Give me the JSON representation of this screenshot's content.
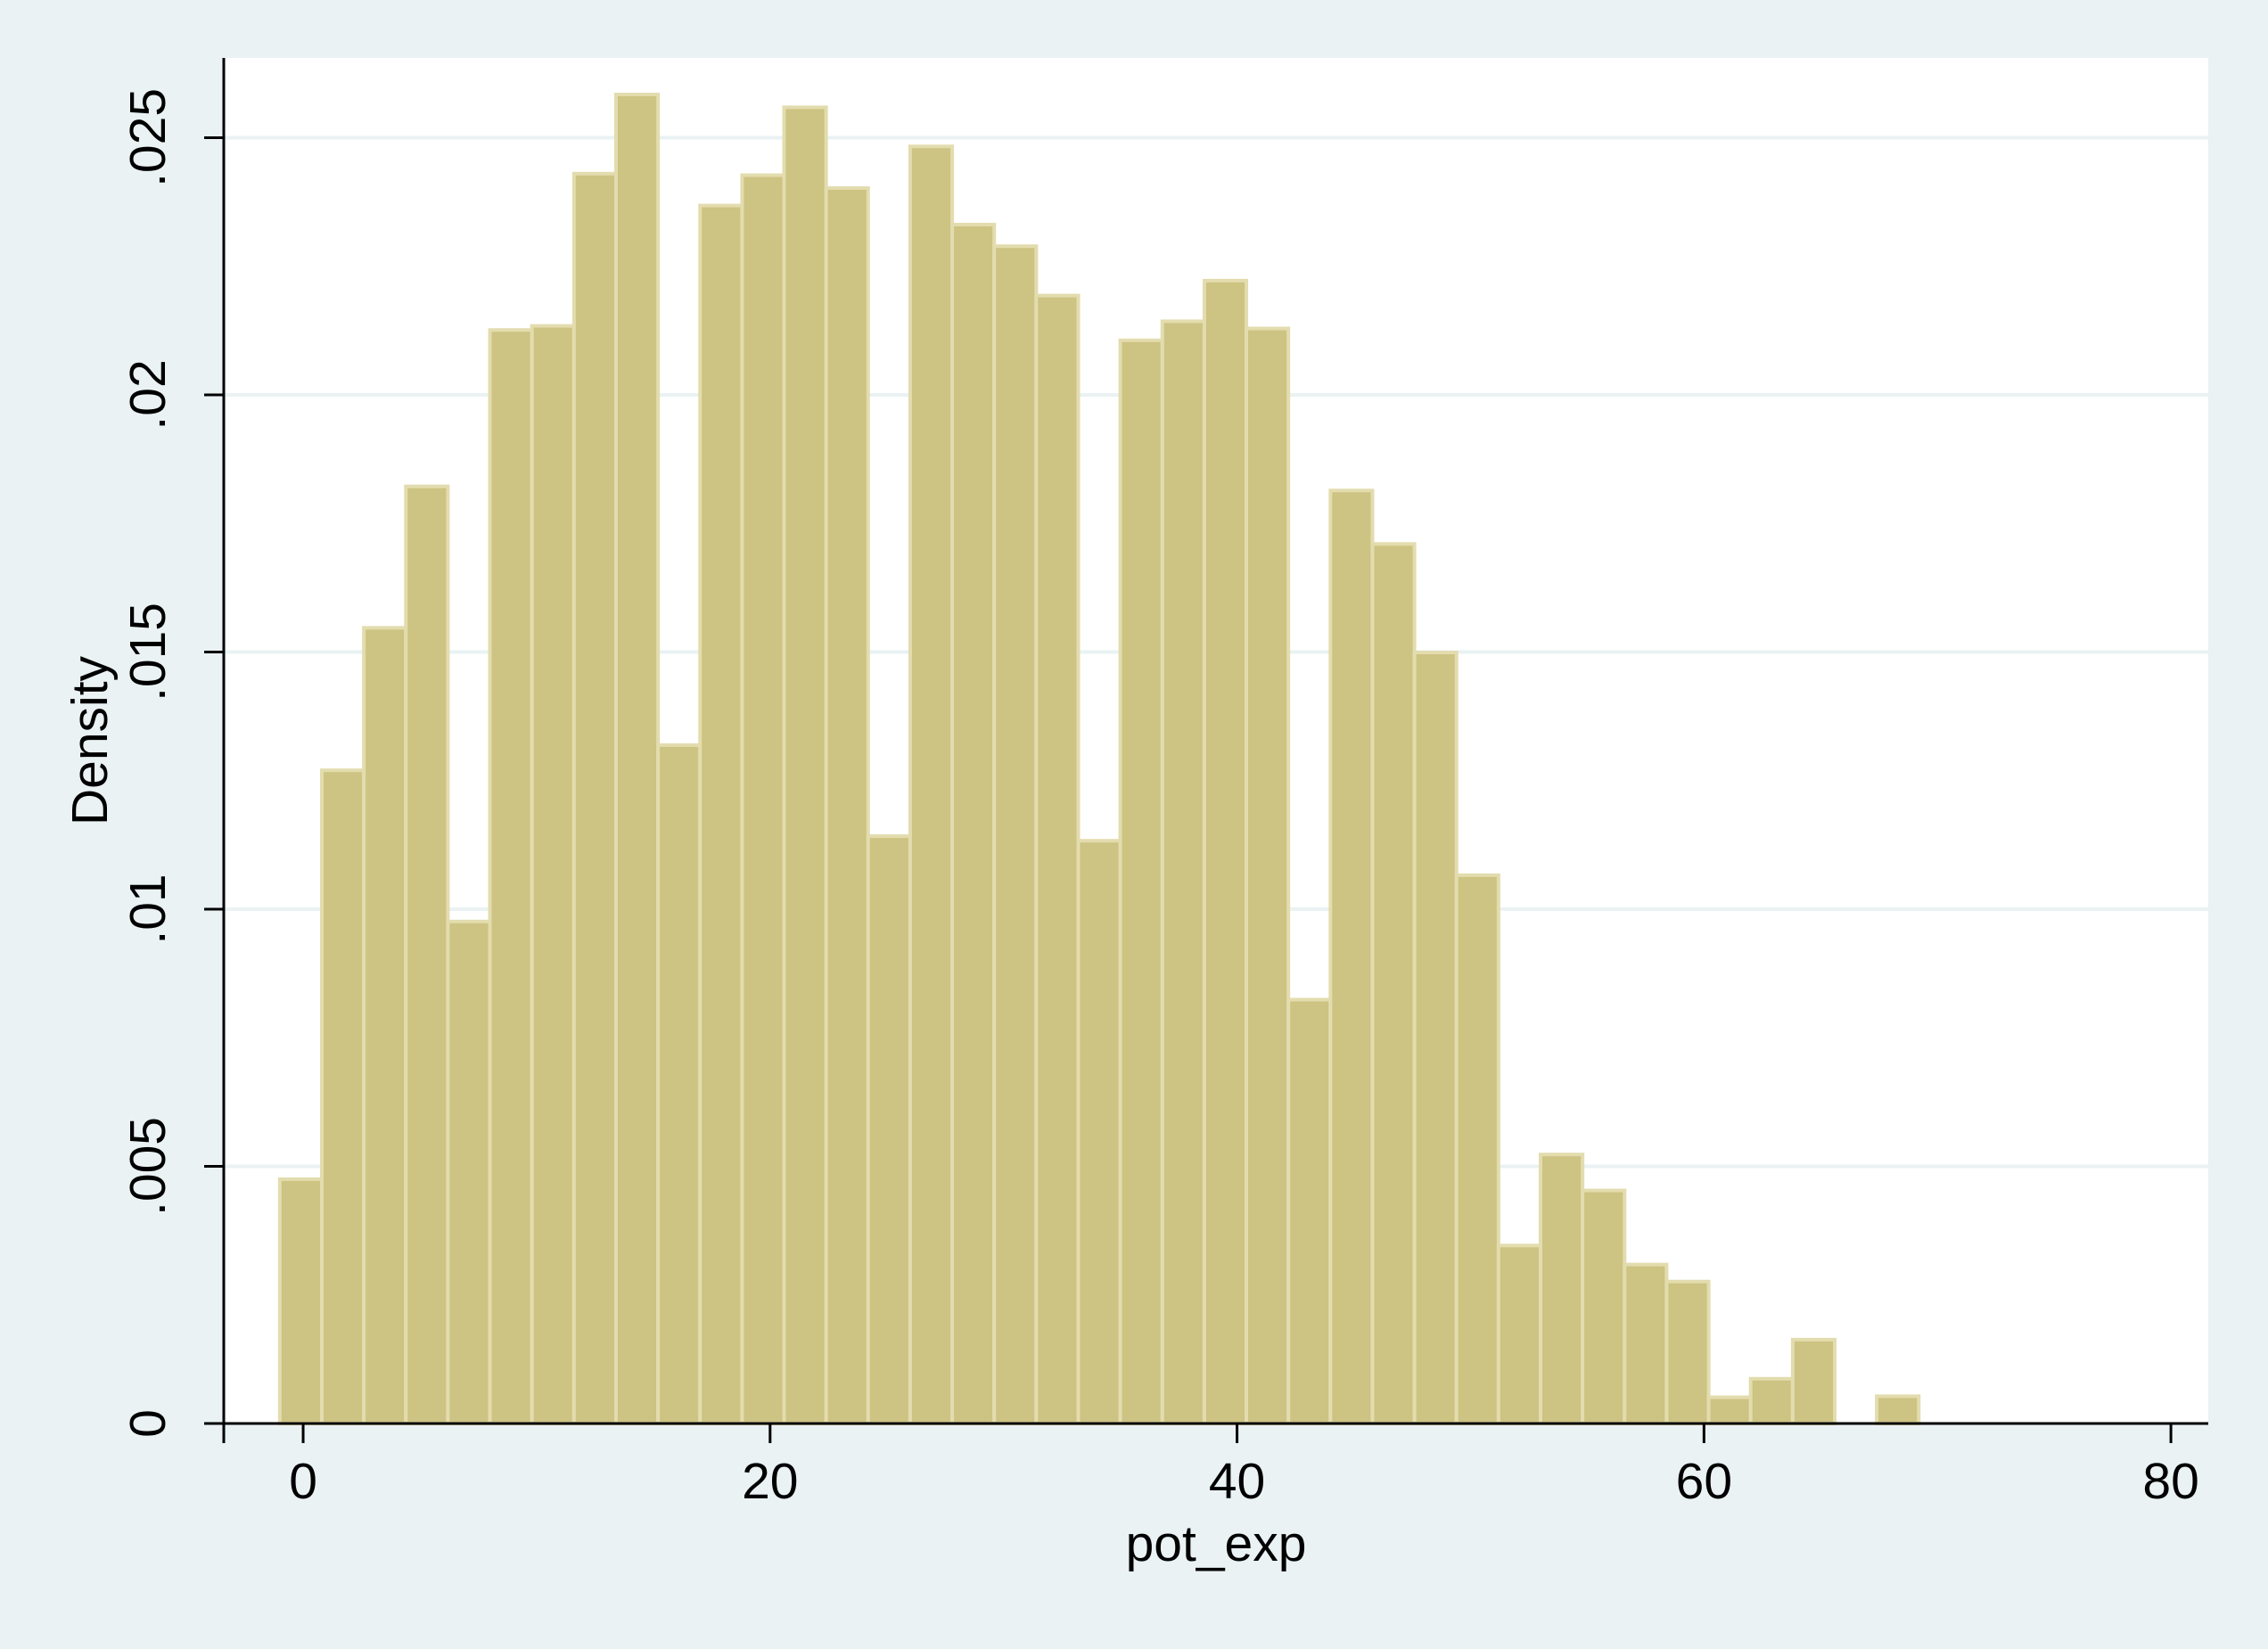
{
  "chart_data": {
    "type": "histogram",
    "x_label": "pot_exp",
    "y_label": "Density",
    "bins": [
      -1,
      0.8,
      2.6,
      4.4,
      6.2,
      8,
      9.8,
      11.6,
      13.4,
      15.2,
      17,
      18.8,
      20.6,
      22.4,
      24.2,
      26,
      27.8,
      29.6,
      31.4,
      33.2,
      35,
      36.8,
      38.6,
      40.4,
      42.2,
      44,
      45.8,
      47.6,
      49.4,
      51.2,
      53,
      54.8,
      56.6,
      58.4,
      60.2,
      62,
      63.8,
      65.6,
      67.4,
      69.2
    ],
    "values": [
      0.00475,
      0.0127,
      0.01547,
      0.01822,
      0.00976,
      0.02126,
      0.02134,
      0.0243,
      0.02584,
      0.01319,
      0.02368,
      0.02427,
      0.02559,
      0.02402,
      0.01142,
      0.02483,
      0.02331,
      0.02289,
      0.02193,
      0.01133,
      0.02106,
      0.02143,
      0.02222,
      0.02129,
      0.00824,
      0.01814,
      0.0171,
      0.01499,
      0.01066,
      0.00346,
      0.00523,
      0.00453,
      0.00309,
      0.00276,
      0.00051,
      0.00087,
      0.00163,
      0,
      0.00053
    ],
    "color": "#cdc382",
    "xlim": [
      -3.4,
      81.6
    ],
    "xticks": [
      0,
      20,
      40,
      60,
      80
    ],
    "ylim": [
      0,
      0.02655
    ],
    "yticks": [
      0,
      {
        "value": 0.005,
        "label": ".005"
      },
      {
        "value": 0.01,
        "label": ".01"
      },
      {
        "value": 0.015,
        "label": ".015"
      },
      {
        "value": 0.02,
        "label": ".02"
      },
      {
        "value": 0.025,
        "label": ".025"
      }
    ],
    "grid": true
  }
}
